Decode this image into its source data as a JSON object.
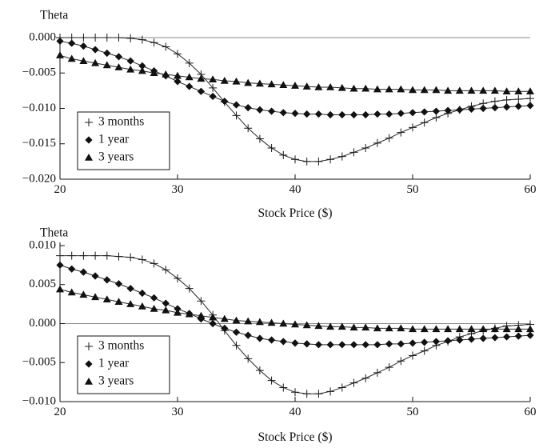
{
  "chart_data": [
    {
      "type": "line",
      "ylabel": "Theta",
      "xlabel": "Stock Price ($)",
      "xlim": [
        20,
        60
      ],
      "ylim": [
        -0.02,
        0.0
      ],
      "xticks": [
        20,
        30,
        40,
        50,
        60
      ],
      "yticks": [
        -0.02,
        -0.015,
        -0.01,
        -0.005,
        0.0
      ],
      "ytick_labels": [
        "−0.020",
        "−0.015",
        "−0.010",
        "−0.005",
        "0.000"
      ],
      "zero_line": true,
      "legend_position": "bottom-left",
      "x": [
        20,
        21,
        22,
        23,
        24,
        25,
        26,
        27,
        28,
        29,
        30,
        31,
        32,
        33,
        34,
        35,
        36,
        37,
        38,
        39,
        40,
        41,
        42,
        43,
        44,
        45,
        46,
        47,
        48,
        49,
        50,
        51,
        52,
        53,
        54,
        55,
        56,
        57,
        58,
        59,
        60
      ],
      "series": [
        {
          "name": "3 months",
          "marker": "plus",
          "values": [
            0.0,
            0.0,
            0.0,
            0.0,
            0.0,
            0.0,
            -0.0001,
            -0.0003,
            -0.0007,
            -0.0013,
            -0.0023,
            -0.0036,
            -0.0052,
            -0.0071,
            -0.0091,
            -0.011,
            -0.0128,
            -0.0143,
            -0.0156,
            -0.0166,
            -0.0172,
            -0.0175,
            -0.0175,
            -0.0172,
            -0.0168,
            -0.0162,
            -0.0156,
            -0.0149,
            -0.0142,
            -0.0134,
            -0.0127,
            -0.012,
            -0.0113,
            -0.0107,
            -0.0102,
            -0.0097,
            -0.0093,
            -0.009,
            -0.0088,
            -0.0087,
            -0.0086
          ]
        },
        {
          "name": "1 year",
          "marker": "diamond",
          "values": [
            -0.0005,
            -0.0008,
            -0.0012,
            -0.0017,
            -0.0022,
            -0.0027,
            -0.0033,
            -0.004,
            -0.0047,
            -0.0054,
            -0.0062,
            -0.0069,
            -0.0076,
            -0.0083,
            -0.009,
            -0.0095,
            -0.0099,
            -0.0102,
            -0.0104,
            -0.0106,
            -0.0107,
            -0.0108,
            -0.0108,
            -0.0109,
            -0.0109,
            -0.0109,
            -0.0109,
            -0.0108,
            -0.0108,
            -0.0107,
            -0.0106,
            -0.0105,
            -0.0104,
            -0.0103,
            -0.0102,
            -0.0101,
            -0.01,
            -0.0099,
            -0.0098,
            -0.0097,
            -0.0096
          ]
        },
        {
          "name": "3 years",
          "marker": "triangle",
          "values": [
            -0.0025,
            -0.003,
            -0.0033,
            -0.0036,
            -0.0039,
            -0.0042,
            -0.0045,
            -0.0047,
            -0.005,
            -0.0052,
            -0.0054,
            -0.0056,
            -0.0058,
            -0.0059,
            -0.0061,
            -0.0062,
            -0.0064,
            -0.0065,
            -0.0066,
            -0.0067,
            -0.0068,
            -0.0069,
            -0.007,
            -0.007,
            -0.0071,
            -0.0072,
            -0.0072,
            -0.0073,
            -0.0073,
            -0.0073,
            -0.0074,
            -0.0074,
            -0.0074,
            -0.0075,
            -0.0075,
            -0.0075,
            -0.0075,
            -0.0075,
            -0.0076,
            -0.0076,
            -0.0076
          ]
        }
      ]
    },
    {
      "type": "line",
      "ylabel": "Theta",
      "xlabel": "Stock Price ($)",
      "xlim": [
        20,
        60
      ],
      "ylim": [
        -0.01,
        0.01
      ],
      "xticks": [
        20,
        30,
        40,
        50,
        60
      ],
      "yticks": [
        -0.01,
        -0.005,
        0.0,
        0.005,
        0.01
      ],
      "ytick_labels": [
        "−0.010",
        "−0.005",
        "0.000",
        "0.005",
        "0.010"
      ],
      "zero_line": true,
      "legend_position": "bottom-left",
      "x": [
        20,
        21,
        22,
        23,
        24,
        25,
        26,
        27,
        28,
        29,
        30,
        31,
        32,
        33,
        34,
        35,
        36,
        37,
        38,
        39,
        40,
        41,
        42,
        43,
        44,
        45,
        46,
        47,
        48,
        49,
        50,
        51,
        52,
        53,
        54,
        55,
        56,
        57,
        58,
        59,
        60
      ],
      "series": [
        {
          "name": "3 months",
          "marker": "plus",
          "values": [
            0.0087,
            0.0087,
            0.0087,
            0.0087,
            0.0087,
            0.0086,
            0.0085,
            0.0082,
            0.0077,
            0.0069,
            0.0058,
            0.0045,
            0.0029,
            0.0011,
            -0.0009,
            -0.0028,
            -0.0045,
            -0.006,
            -0.0073,
            -0.0082,
            -0.0088,
            -0.009,
            -0.009,
            -0.0087,
            -0.0082,
            -0.0076,
            -0.007,
            -0.0063,
            -0.0056,
            -0.0048,
            -0.0041,
            -0.0035,
            -0.0028,
            -0.0023,
            -0.0017,
            -0.0013,
            -0.0009,
            -0.0006,
            -0.0003,
            -0.0002,
            -0.0001
          ]
        },
        {
          "name": "1 year",
          "marker": "diamond",
          "values": [
            0.0075,
            0.007,
            0.0066,
            0.0061,
            0.0056,
            0.0051,
            0.0045,
            0.0039,
            0.0033,
            0.0026,
            0.0019,
            0.0013,
            0.0006,
            0.0,
            -0.0006,
            -0.0011,
            -0.0015,
            -0.0019,
            -0.0021,
            -0.0023,
            -0.0025,
            -0.0026,
            -0.0027,
            -0.0027,
            -0.0027,
            -0.0027,
            -0.0027,
            -0.0027,
            -0.0026,
            -0.0026,
            -0.0025,
            -0.0024,
            -0.0023,
            -0.0022,
            -0.0021,
            -0.002,
            -0.0019,
            -0.0018,
            -0.0017,
            -0.0016,
            -0.0015
          ]
        },
        {
          "name": "3 years",
          "marker": "triangle",
          "values": [
            0.0044,
            0.004,
            0.0037,
            0.0034,
            0.0031,
            0.0028,
            0.0025,
            0.0022,
            0.0019,
            0.0017,
            0.0014,
            0.0012,
            0.001,
            0.0008,
            0.0006,
            0.0004,
            0.0003,
            0.0002,
            0.0001,
            0.0,
            -0.0001,
            -0.0002,
            -0.0003,
            -0.0004,
            -0.0004,
            -0.0005,
            -0.0005,
            -0.0006,
            -0.0006,
            -0.0006,
            -0.0007,
            -0.0007,
            -0.0007,
            -0.0007,
            -0.0007,
            -0.0007,
            -0.0007,
            -0.0007,
            -0.0007,
            -0.0007,
            -0.0007
          ]
        }
      ]
    }
  ]
}
